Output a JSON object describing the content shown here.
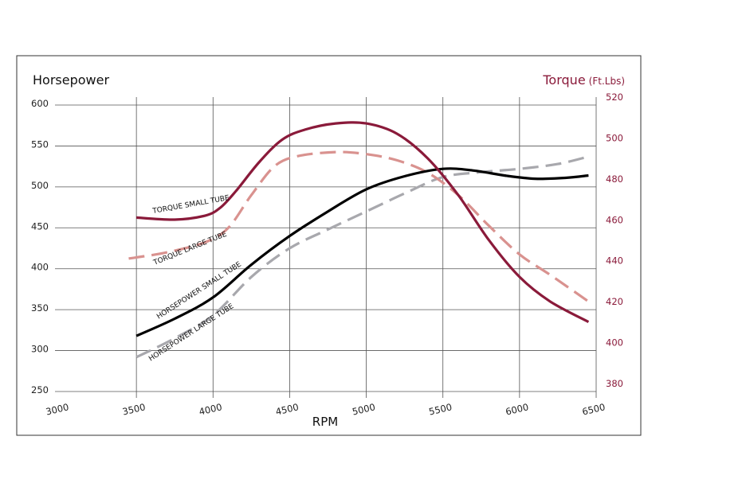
{
  "chart_data": {
    "type": "line",
    "left_axis_title": "Horsepower",
    "right_axis_title": "Torque",
    "right_axis_unit": "(Ft.Lbs)",
    "xlabel": "RPM",
    "xlim": [
      3000,
      6500
    ],
    "ylim_left": [
      250,
      600
    ],
    "ylim_right": [
      380,
      520
    ],
    "x_ticks": [
      "3000",
      "3500",
      "4000",
      "4500",
      "5000",
      "5500",
      "6000",
      "6500"
    ],
    "y_left_ticks": [
      "600",
      "550",
      "500",
      "450",
      "400",
      "350",
      "300",
      "250"
    ],
    "y_right_ticks": [
      "520",
      "500",
      "480",
      "460",
      "440",
      "420",
      "400",
      "380"
    ],
    "grid": true,
    "series": [
      {
        "id": "torque_small",
        "name": "TORQUE SMALL TUBE",
        "axis": "right",
        "style": "solid",
        "color": "#8a1a3a",
        "points": [
          [
            3500,
            465
          ],
          [
            3750,
            464
          ],
          [
            3950,
            466
          ],
          [
            4050,
            470
          ],
          [
            4150,
            478
          ],
          [
            4300,
            492
          ],
          [
            4450,
            503
          ],
          [
            4600,
            508
          ],
          [
            4800,
            511
          ],
          [
            5000,
            511
          ],
          [
            5200,
            506
          ],
          [
            5400,
            494
          ],
          [
            5600,
            476
          ],
          [
            5800,
            454
          ],
          [
            6000,
            436
          ],
          [
            6200,
            424
          ],
          [
            6450,
            414
          ]
        ]
      },
      {
        "id": "torque_large",
        "name": "TORQUE LARGE TUBE",
        "axis": "right",
        "style": "dashed",
        "color": "#d9928f",
        "points": [
          [
            3450,
            445
          ],
          [
            3700,
            448
          ],
          [
            3950,
            453
          ],
          [
            4100,
            460
          ],
          [
            4250,
            476
          ],
          [
            4400,
            490
          ],
          [
            4550,
            495
          ],
          [
            4800,
            497
          ],
          [
            5000,
            496
          ],
          [
            5200,
            493
          ],
          [
            5400,
            487
          ],
          [
            5600,
            476
          ],
          [
            5800,
            461
          ],
          [
            6000,
            447
          ],
          [
            6200,
            437
          ],
          [
            6450,
            424
          ]
        ]
      },
      {
        "id": "hp_small",
        "name": "HORSEPOWER SMALL TUBE",
        "axis": "left",
        "style": "solid",
        "color": "#000000",
        "points": [
          [
            3500,
            318
          ],
          [
            3750,
            339
          ],
          [
            4000,
            365
          ],
          [
            4250,
            405
          ],
          [
            4500,
            440
          ],
          [
            4750,
            470
          ],
          [
            5000,
            497
          ],
          [
            5250,
            513
          ],
          [
            5500,
            522
          ],
          [
            5700,
            520
          ],
          [
            5900,
            514
          ],
          [
            6100,
            510
          ],
          [
            6300,
            511
          ],
          [
            6450,
            514
          ]
        ]
      },
      {
        "id": "hp_large",
        "name": "HORSEPOWER LARGE TUBE",
        "axis": "left",
        "style": "dashed",
        "color": "#a8a8ad",
        "points": [
          [
            3500,
            292
          ],
          [
            3750,
            315
          ],
          [
            4000,
            343
          ],
          [
            4250,
            390
          ],
          [
            4500,
            425
          ],
          [
            4750,
            448
          ],
          [
            5000,
            470
          ],
          [
            5250,
            492
          ],
          [
            5500,
            512
          ],
          [
            5750,
            518
          ],
          [
            6000,
            522
          ],
          [
            6250,
            528
          ],
          [
            6450,
            537
          ]
        ]
      }
    ]
  },
  "colors": {
    "torque_accent": "#8a1a3a",
    "grid": "#555555",
    "frame": "#333333"
  }
}
